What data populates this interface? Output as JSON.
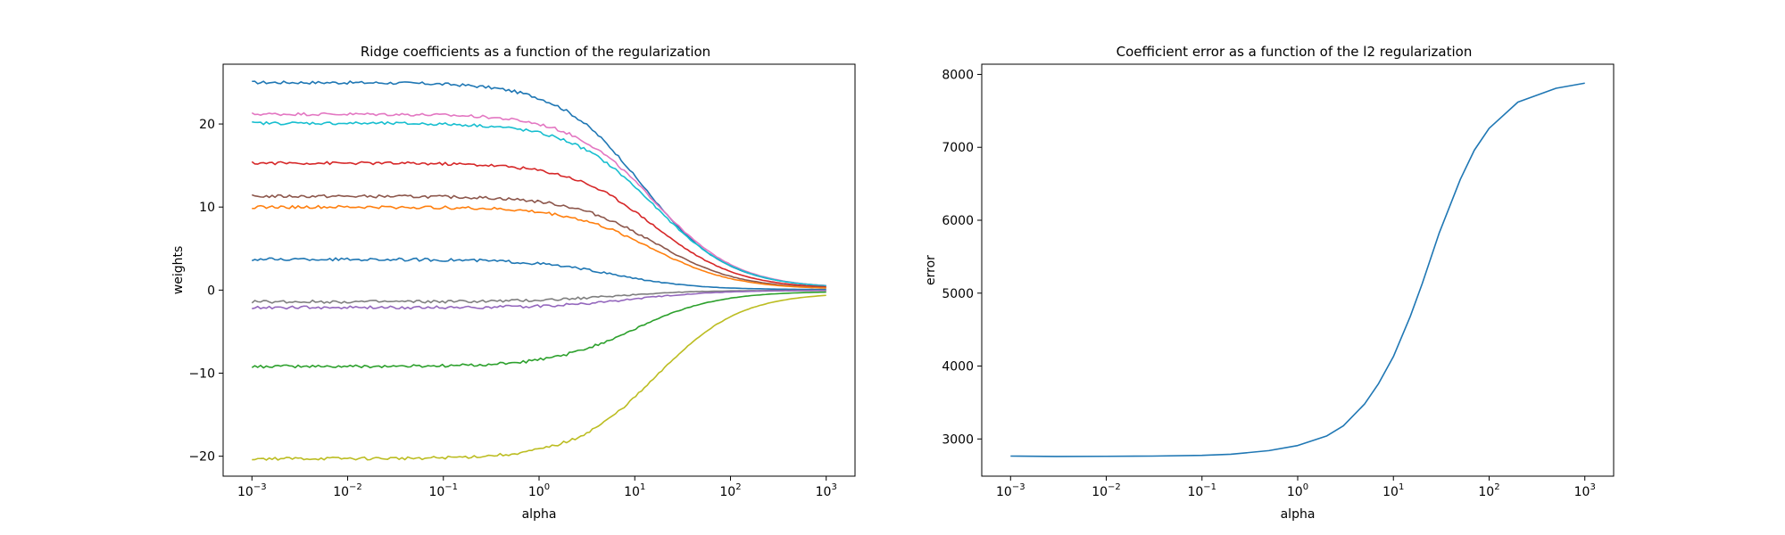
{
  "chart_data": [
    {
      "type": "line",
      "title": "Ridge coefficients as a function of the regularization",
      "xlabel": "alpha",
      "ylabel": "weights",
      "xscale": "log",
      "xlim": [
        0.0005,
        2000
      ],
      "ylim": [
        -22.4,
        27.2
      ],
      "x_ticks": [
        {
          "value": 0.001,
          "label": "10^-3"
        },
        {
          "value": 0.01,
          "label": "10^-2"
        },
        {
          "value": 0.1,
          "label": "10^-1"
        },
        {
          "value": 1,
          "label": "10^0"
        },
        {
          "value": 10,
          "label": "10^1"
        },
        {
          "value": 100,
          "label": "10^2"
        },
        {
          "value": 1000,
          "label": "10^3"
        }
      ],
      "y_ticks": [
        -20,
        -10,
        0,
        10,
        20
      ],
      "grid": false,
      "x_range": [
        0.001,
        1000
      ],
      "series": [
        {
          "color": "#1f77b4",
          "start": 25.0,
          "mid": 12,
          "end": 0.25
        },
        {
          "color": "#e377c2",
          "start": 21.2,
          "mid": 16,
          "end": 0.2
        },
        {
          "color": "#17becf",
          "start": 20.1,
          "mid": 16,
          "end": 0.2
        },
        {
          "color": "#d62728",
          "start": 15.3,
          "mid": 16,
          "end": 0.15
        },
        {
          "color": "#8c564b",
          "start": 11.3,
          "mid": 16,
          "end": 0.12
        },
        {
          "color": "#ff7f0e",
          "start": 10.0,
          "mid": 15,
          "end": 0.1
        },
        {
          "color": "#1f77b4",
          "start": 3.7,
          "mid": 6,
          "end": 0.05
        },
        {
          "color": "#7f7f7f",
          "start": -1.4,
          "mid": 6,
          "end": -0.02
        },
        {
          "color": "#9467bd",
          "start": -2.1,
          "mid": 10,
          "end": -0.03
        },
        {
          "color": "#2ca02c",
          "start": -9.2,
          "mid": 10,
          "end": -0.15
        },
        {
          "color": "#bcbd22",
          "start": -20.3,
          "mid": 17,
          "end": -0.3
        }
      ]
    },
    {
      "type": "line",
      "title": "Coefficient error as a function of the l2 regularization",
      "xlabel": "alpha",
      "ylabel": "error",
      "xscale": "log",
      "xlim": [
        0.0005,
        2000
      ],
      "ylim": [
        2490,
        8140
      ],
      "x_ticks": [
        {
          "value": 0.001,
          "label": "10^-3"
        },
        {
          "value": 0.01,
          "label": "10^-2"
        },
        {
          "value": 0.1,
          "label": "10^-1"
        },
        {
          "value": 1,
          "label": "10^0"
        },
        {
          "value": 10,
          "label": "10^1"
        },
        {
          "value": 100,
          "label": "10^2"
        },
        {
          "value": 1000,
          "label": "10^3"
        }
      ],
      "y_ticks": [
        3000,
        4000,
        5000,
        6000,
        7000,
        8000
      ],
      "grid": false,
      "series": [
        {
          "color": "#1f77b4",
          "x": [
            0.001,
            0.003,
            0.01,
            0.03,
            0.1,
            0.2,
            0.5,
            1,
            2,
            3,
            5,
            7,
            10,
            15,
            20,
            30,
            50,
            70,
            100,
            200,
            500,
            1000
          ],
          "y": [
            2765,
            2760,
            2762,
            2765,
            2775,
            2790,
            2840,
            2910,
            3040,
            3180,
            3480,
            3760,
            4130,
            4680,
            5130,
            5820,
            6560,
            6960,
            7260,
            7620,
            7810,
            7880
          ]
        }
      ]
    }
  ]
}
